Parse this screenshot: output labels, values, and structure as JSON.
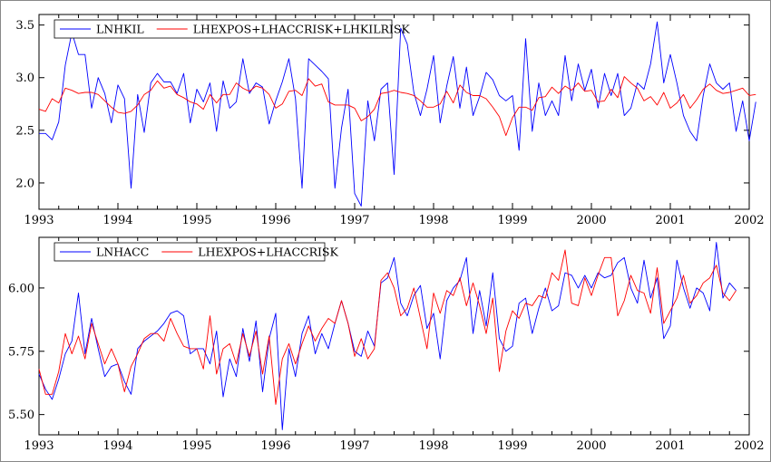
{
  "chart_data": [
    {
      "type": "line",
      "title": "",
      "xlabel": "",
      "ylabel": "",
      "xlim": [
        1993,
        2002
      ],
      "ylim": [
        1.75,
        3.6
      ],
      "x_ticks": [
        1993,
        1994,
        1995,
        1996,
        1997,
        1998,
        1999,
        2000,
        2001,
        2002
      ],
      "x_tick_labels": [
        "1993",
        "1994",
        "1995",
        "1996",
        "1997",
        "1998",
        "1999",
        "2000",
        "2001",
        "2002"
      ],
      "y_ticks": [
        2.0,
        2.5,
        3.0,
        3.5
      ],
      "y_tick_labels": [
        "2.0",
        "2.5",
        "3.0",
        "3.5"
      ],
      "grid": false,
      "legend_position": "top-left",
      "frequency": "monthly",
      "x_start": "1993-01",
      "series": [
        {
          "name": "LNHKIL",
          "color": "#0000ff",
          "values": [
            2.47,
            2.47,
            2.41,
            2.58,
            3.12,
            3.43,
            3.22,
            3.22,
            2.71,
            3.0,
            2.85,
            2.57,
            2.93,
            2.8,
            1.95,
            2.84,
            2.48,
            2.95,
            3.04,
            2.96,
            2.96,
            2.85,
            3.04,
            2.57,
            2.89,
            2.77,
            2.95,
            2.49,
            2.97,
            2.71,
            2.77,
            3.18,
            2.85,
            2.95,
            2.91,
            2.56,
            2.78,
            2.96,
            3.18,
            2.8,
            1.95,
            3.18,
            3.12,
            3.06,
            2.99,
            1.95,
            2.52,
            2.89,
            1.9,
            1.78,
            2.78,
            2.4,
            2.89,
            2.95,
            2.08,
            3.47,
            3.32,
            2.86,
            2.64,
            2.89,
            3.21,
            2.57,
            2.92,
            3.2,
            2.71,
            3.1,
            2.64,
            2.82,
            3.05,
            2.98,
            2.83,
            2.78,
            2.83,
            2.31,
            3.37,
            2.49,
            2.95,
            2.64,
            2.78,
            2.64,
            3.21,
            2.78,
            3.13,
            2.88,
            3.08,
            2.71,
            3.04,
            2.83,
            3.04,
            2.64,
            2.71,
            2.95,
            2.89,
            3.13,
            3.53,
            2.95,
            3.22,
            2.95,
            2.64,
            2.49,
            2.4,
            2.83,
            3.13,
            2.95,
            2.89,
            2.95,
            2.49,
            2.78,
            2.4,
            2.77
          ]
        },
        {
          "name": "LHEXPOS+LHACCRISK+LHKILRISK",
          "color": "#ff0000",
          "values": [
            2.7,
            2.68,
            2.8,
            2.76,
            2.9,
            2.88,
            2.85,
            2.86,
            2.86,
            2.84,
            2.78,
            2.72,
            2.67,
            2.66,
            2.68,
            2.74,
            2.84,
            2.88,
            2.97,
            2.9,
            2.92,
            2.84,
            2.81,
            2.77,
            2.75,
            2.7,
            2.84,
            2.76,
            2.84,
            2.84,
            2.95,
            2.9,
            2.87,
            2.92,
            2.9,
            2.84,
            2.71,
            2.75,
            2.87,
            2.88,
            2.83,
            2.99,
            2.92,
            2.94,
            2.77,
            2.74,
            2.74,
            2.74,
            2.71,
            2.59,
            2.63,
            2.7,
            2.85,
            2.86,
            2.88,
            2.86,
            2.85,
            2.83,
            2.78,
            2.72,
            2.72,
            2.75,
            2.87,
            2.76,
            2.93,
            2.86,
            2.83,
            2.83,
            2.8,
            2.72,
            2.63,
            2.45,
            2.62,
            2.72,
            2.72,
            2.69,
            2.81,
            2.82,
            2.91,
            2.85,
            2.92,
            2.88,
            2.95,
            2.87,
            2.88,
            2.77,
            2.78,
            2.89,
            2.81,
            3.01,
            2.95,
            2.9,
            2.78,
            2.82,
            2.74,
            2.86,
            2.71,
            2.76,
            2.84,
            2.71,
            2.79,
            2.89,
            2.94,
            2.88,
            2.85,
            2.86,
            2.88,
            2.9,
            2.83,
            2.84
          ]
        }
      ]
    },
    {
      "type": "line",
      "title": "",
      "xlabel": "",
      "ylabel": "",
      "xlim": [
        1993,
        2002
      ],
      "ylim": [
        5.42,
        6.2
      ],
      "x_ticks": [
        1993,
        1994,
        1995,
        1996,
        1997,
        1998,
        1999,
        2000,
        2001,
        2002
      ],
      "x_tick_labels": [
        "1993",
        "1994",
        "1995",
        "1996",
        "1997",
        "1998",
        "1999",
        "2000",
        "2001",
        "2002"
      ],
      "y_ticks": [
        5.5,
        5.75,
        6.0
      ],
      "y_tick_labels": [
        "5.50",
        "5.75",
        "6.00"
      ],
      "grid": false,
      "legend_position": "top-left",
      "frequency": "monthly",
      "x_start": "1993-01",
      "series": [
        {
          "name": "LNHACC",
          "color": "#0000ff",
          "values": [
            5.66,
            5.6,
            5.56,
            5.64,
            5.74,
            5.79,
            5.98,
            5.74,
            5.88,
            5.76,
            5.65,
            5.69,
            5.7,
            5.63,
            5.58,
            5.76,
            5.79,
            5.81,
            5.83,
            5.86,
            5.9,
            5.91,
            5.89,
            5.74,
            5.76,
            5.76,
            5.7,
            5.83,
            5.57,
            5.72,
            5.65,
            5.84,
            5.71,
            5.87,
            5.59,
            5.8,
            5.9,
            5.44,
            5.76,
            5.65,
            5.82,
            5.89,
            5.74,
            5.82,
            5.76,
            5.86,
            5.95,
            5.86,
            5.75,
            5.73,
            5.83,
            5.77,
            6.02,
            6.04,
            6.12,
            5.94,
            5.89,
            5.97,
            6.01,
            5.84,
            5.9,
            5.72,
            5.95,
            6.0,
            6.03,
            6.12,
            5.82,
            5.99,
            5.85,
            6.06,
            5.8,
            5.75,
            5.77,
            5.94,
            5.96,
            5.82,
            5.92,
            6.0,
            5.91,
            5.93,
            6.06,
            6.05,
            6.0,
            6.05,
            6.0,
            6.06,
            6.04,
            6.05,
            6.1,
            6.12,
            6.0,
            5.94,
            6.11,
            5.96,
            6.04,
            5.8,
            5.85,
            6.11,
            6.0,
            5.92,
            6.0,
            5.98,
            5.91,
            6.18,
            5.96,
            6.02,
            5.99
          ]
        },
        {
          "name": "LHEXPOS+LHACCRISK",
          "color": "#ff0000",
          "values": [
            5.68,
            5.58,
            5.58,
            5.67,
            5.82,
            5.74,
            5.81,
            5.72,
            5.86,
            5.78,
            5.7,
            5.76,
            5.7,
            5.59,
            5.69,
            5.74,
            5.8,
            5.82,
            5.82,
            5.79,
            5.88,
            5.82,
            5.77,
            5.76,
            5.76,
            5.68,
            5.89,
            5.66,
            5.76,
            5.78,
            5.7,
            5.82,
            5.73,
            5.83,
            5.66,
            5.81,
            5.54,
            5.72,
            5.78,
            5.7,
            5.78,
            5.85,
            5.79,
            5.84,
            5.88,
            5.86,
            5.95,
            5.86,
            5.73,
            5.8,
            5.72,
            5.76,
            6.03,
            6.06,
            6.0,
            5.89,
            5.92,
            6.0,
            5.88,
            5.76,
            5.98,
            5.9,
            5.99,
            5.97,
            6.04,
            5.93,
            6.02,
            5.93,
            5.82,
            5.96,
            5.67,
            5.83,
            5.91,
            5.88,
            5.94,
            5.93,
            5.97,
            5.96,
            6.06,
            6.03,
            6.15,
            5.94,
            5.93,
            6.04,
            5.97,
            6.05,
            6.12,
            6.12,
            5.89,
            5.95,
            6.05,
            5.99,
            5.98,
            5.9,
            6.08,
            5.86,
            5.91,
            5.96,
            6.05,
            5.94,
            5.97,
            6.02,
            6.04,
            6.09,
            5.98,
            5.95,
            5.99
          ]
        }
      ]
    }
  ]
}
